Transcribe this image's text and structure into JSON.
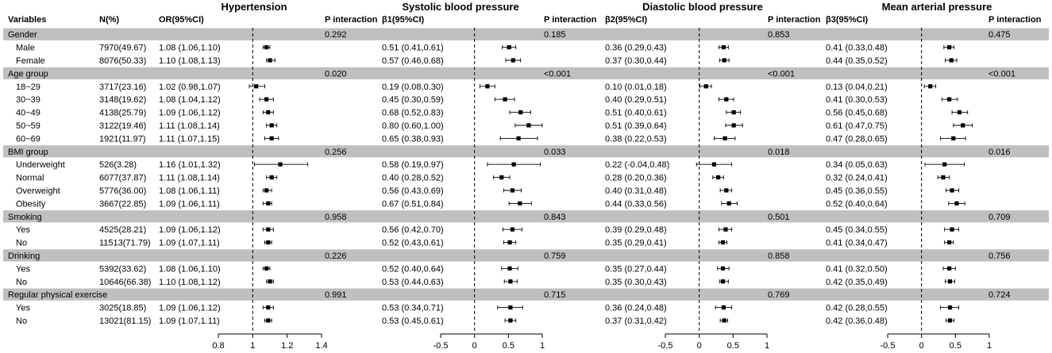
{
  "figure": {
    "column_headers": {
      "variables": "Variables",
      "n": "N(%)",
      "or": "OR(95%CI)",
      "p_interaction": "P interaction",
      "b1": "β1(95%CI)",
      "b2": "β2(95%CI)",
      "b3": "β3(95%CI)"
    },
    "panel_titles": [
      "Hypertension",
      "Systolic blood pressure",
      "Diastolic blood pressure",
      "Mean arterial pressure"
    ]
  },
  "chart_data": {
    "type": "forest",
    "panels": [
      {
        "name": "Hypertension",
        "estimate_label": "OR(95%CI)",
        "reference": 1,
        "xlim": [
          0.8,
          1.4
        ],
        "ticks": [
          0.8,
          1,
          1.2,
          1.4
        ],
        "tick_labels": [
          "0.8",
          "1",
          "1.2",
          "1.4"
        ]
      },
      {
        "name": "Systolic blood pressure",
        "estimate_label": "β1(95%CI)",
        "reference": 0,
        "xlim": [
          -0.5,
          1
        ],
        "ticks": [
          -0.5,
          0,
          0.5,
          1
        ],
        "tick_labels": [
          "-0.5",
          "0",
          "0.5",
          "1"
        ]
      },
      {
        "name": "Diastolic blood pressure",
        "estimate_label": "β2(95%CI)",
        "reference": 0,
        "xlim": [
          -0.5,
          1
        ],
        "ticks": [
          -0.5,
          0,
          0.5,
          1
        ],
        "tick_labels": [
          "-0.5",
          "0",
          "0.5",
          "1"
        ]
      },
      {
        "name": "Mean arterial pressure",
        "estimate_label": "β3(95%CI)",
        "reference": 0,
        "xlim": [
          -0.5,
          1
        ],
        "ticks": [
          -0.5,
          0,
          0.5,
          1
        ],
        "tick_labels": [
          "-0.5",
          "0",
          "0.5",
          "1"
        ]
      }
    ],
    "rows": [
      {
        "kind": "group",
        "label": "Gender",
        "p": [
          "0.292",
          "0.185",
          "0.853",
          "0.475"
        ]
      },
      {
        "kind": "item",
        "label": "Male",
        "n": "7970(49.67)",
        "ci": [
          "1.08 (1.06,1.10)",
          "0.51 (0.41,0.61)",
          "0.36 (0.29,0.43)",
          "0.41 (0.33,0.48)"
        ],
        "est": [
          [
            1.08,
            1.06,
            1.1
          ],
          [
            0.51,
            0.41,
            0.61
          ],
          [
            0.36,
            0.29,
            0.43
          ],
          [
            0.41,
            0.33,
            0.48
          ]
        ]
      },
      {
        "kind": "item",
        "label": "Female",
        "n": "8076(50.33)",
        "ci": [
          "1.10 (1.08,1.13)",
          "0.57 (0.46,0.68)",
          "0.37 (0.30,0.44)",
          "0.44 (0.35,0.52)"
        ],
        "est": [
          [
            1.1,
            1.08,
            1.13
          ],
          [
            0.57,
            0.46,
            0.68
          ],
          [
            0.37,
            0.3,
            0.44
          ],
          [
            0.44,
            0.35,
            0.52
          ]
        ]
      },
      {
        "kind": "group",
        "label": "Age group",
        "p": [
          "0.020",
          "<0.001",
          "<0.001",
          "<0.001"
        ]
      },
      {
        "kind": "item",
        "label": "18~29",
        "n": "3717(23.16)",
        "ci": [
          "1.02 (0.98,1.07)",
          "0.19 (0.08,0.30)",
          "0.10 (0.01,0.18)",
          "0.13 (0.04,0.21)"
        ],
        "est": [
          [
            1.02,
            0.98,
            1.07
          ],
          [
            0.19,
            0.08,
            0.3
          ],
          [
            0.1,
            0.01,
            0.18
          ],
          [
            0.13,
            0.04,
            0.21
          ]
        ]
      },
      {
        "kind": "item",
        "label": "30~39",
        "n": "3148(19.62)",
        "ci": [
          "1.08 (1.04,1.12)",
          "0.45 (0.30,0.59)",
          "0.40 (0.29,0.51)",
          "0.41 (0.30,0.53)"
        ],
        "est": [
          [
            1.08,
            1.04,
            1.12
          ],
          [
            0.45,
            0.3,
            0.59
          ],
          [
            0.4,
            0.29,
            0.51
          ],
          [
            0.41,
            0.3,
            0.53
          ]
        ]
      },
      {
        "kind": "item",
        "label": "40~49",
        "n": "4138(25.79)",
        "ci": [
          "1.09 (1.06,1.12)",
          "0.68 (0.52,0.83)",
          "0.51 (0.40,0.61)",
          "0.56 (0.45,0.68)"
        ],
        "est": [
          [
            1.09,
            1.06,
            1.12
          ],
          [
            0.68,
            0.52,
            0.83
          ],
          [
            0.51,
            0.4,
            0.61
          ],
          [
            0.56,
            0.45,
            0.68
          ]
        ]
      },
      {
        "kind": "item",
        "label": "50~59",
        "n": "3122(19.46)",
        "ci": [
          "1.11 (1.08,1.14)",
          "0.80 (0.60,1.00)",
          "0.51 (0.39,0.64)",
          "0.61 (0.47,0.75)"
        ],
        "est": [
          [
            1.11,
            1.08,
            1.14
          ],
          [
            0.8,
            0.6,
            1.0
          ],
          [
            0.51,
            0.39,
            0.64
          ],
          [
            0.61,
            0.47,
            0.75
          ]
        ]
      },
      {
        "kind": "item",
        "label": "60~69",
        "n": "1921(11.97)",
        "ci": [
          "1.11 (1.07,1.15)",
          "0.65 (0.38,0.93)",
          "0.38 (0.22,0.53)",
          "0.47 (0.28,0.65)"
        ],
        "est": [
          [
            1.11,
            1.07,
            1.15
          ],
          [
            0.65,
            0.38,
            0.93
          ],
          [
            0.38,
            0.22,
            0.53
          ],
          [
            0.47,
            0.28,
            0.65
          ]
        ]
      },
      {
        "kind": "group",
        "label": "BMI group",
        "p": [
          "0.256",
          "0.033",
          "0.018",
          "0.016"
        ]
      },
      {
        "kind": "item",
        "label": "Underweight",
        "n": "526(3.28)",
        "ci": [
          "1.16 (1.01,1.32)",
          "0.58 (0.19,0.97)",
          "0.22 (-0.04,0.48)",
          "0.34 (0.05,0.63)"
        ],
        "est": [
          [
            1.16,
            1.01,
            1.32
          ],
          [
            0.58,
            0.19,
            0.97
          ],
          [
            0.22,
            -0.04,
            0.48
          ],
          [
            0.34,
            0.05,
            0.63
          ]
        ]
      },
      {
        "kind": "item",
        "label": "Normal",
        "n": "6077(37.87)",
        "ci": [
          "1.11 (1.08,1.14)",
          "0.40 (0.28,0.52)",
          "0.28 (0.20,0.36)",
          "0.32 (0.24,0.41)"
        ],
        "est": [
          [
            1.11,
            1.08,
            1.14
          ],
          [
            0.4,
            0.28,
            0.52
          ],
          [
            0.28,
            0.2,
            0.36
          ],
          [
            0.32,
            0.24,
            0.41
          ]
        ]
      },
      {
        "kind": "item",
        "label": "Overweight",
        "n": "5776(36.00)",
        "ci": [
          "1.08 (1.06,1.11)",
          "0.56 (0.43,0.69)",
          "0.40 (0.31,0.48)",
          "0.45 (0.36,0.55)"
        ],
        "est": [
          [
            1.08,
            1.06,
            1.11
          ],
          [
            0.56,
            0.43,
            0.69
          ],
          [
            0.4,
            0.31,
            0.48
          ],
          [
            0.45,
            0.36,
            0.55
          ]
        ]
      },
      {
        "kind": "item",
        "label": "Obesity",
        "n": "3667(22.85)",
        "ci": [
          "1.09 (1.06,1.11)",
          "0.67 (0.51,0.84)",
          "0.44 (0.33,0.56)",
          "0.52 (0.40,0.64)"
        ],
        "est": [
          [
            1.09,
            1.06,
            1.11
          ],
          [
            0.67,
            0.51,
            0.84
          ],
          [
            0.44,
            0.33,
            0.56
          ],
          [
            0.52,
            0.4,
            0.64
          ]
        ]
      },
      {
        "kind": "group",
        "label": "Smoking",
        "p": [
          "0.958",
          "0.843",
          "0.501",
          "0.709"
        ]
      },
      {
        "kind": "item",
        "label": "Yes",
        "n": "4525(28.21)",
        "ci": [
          "1.09 (1.06,1.12)",
          "0.56 (0.42,0.70)",
          "0.39 (0.29,0.48)",
          "0.45 (0.34,0.55)"
        ],
        "est": [
          [
            1.09,
            1.06,
            1.12
          ],
          [
            0.56,
            0.42,
            0.7
          ],
          [
            0.39,
            0.29,
            0.48
          ],
          [
            0.45,
            0.34,
            0.55
          ]
        ]
      },
      {
        "kind": "item",
        "label": "No",
        "n": "11513(71.79)",
        "ci": [
          "1.09 (1.07,1.11)",
          "0.52 (0.43,0.61)",
          "0.35 (0.29,0.41)",
          "0.41 (0.34,0.47)"
        ],
        "est": [
          [
            1.09,
            1.07,
            1.11
          ],
          [
            0.52,
            0.43,
            0.61
          ],
          [
            0.35,
            0.29,
            0.41
          ],
          [
            0.41,
            0.34,
            0.47
          ]
        ]
      },
      {
        "kind": "group",
        "label": "Drinking",
        "p": [
          "0.226",
          "0.759",
          "0.858",
          "0.756"
        ]
      },
      {
        "kind": "item",
        "label": "Yes",
        "n": "5392(33.62)",
        "ci": [
          "1.08 (1.06,1.10)",
          "0.52 (0.40,0.64)",
          "0.35 (0.27,0.44)",
          "0.41 (0.32,0.50)"
        ],
        "est": [
          [
            1.08,
            1.06,
            1.1
          ],
          [
            0.52,
            0.4,
            0.64
          ],
          [
            0.35,
            0.27,
            0.44
          ],
          [
            0.41,
            0.32,
            0.5
          ]
        ]
      },
      {
        "kind": "item",
        "label": "No",
        "n": "10646(66.38)",
        "ci": [
          "1.10 (1.08,1.12)",
          "0.53 (0.44,0.63)",
          "0.35 (0.30,0.43)",
          "0.42 (0.35,0.49)"
        ],
        "est": [
          [
            1.1,
            1.08,
            1.12
          ],
          [
            0.53,
            0.44,
            0.63
          ],
          [
            0.35,
            0.3,
            0.43
          ],
          [
            0.42,
            0.35,
            0.49
          ]
        ]
      },
      {
        "kind": "group",
        "label": "Regular physical exercise",
        "p": [
          "0.991",
          "0.715",
          "0.769",
          "0.724"
        ]
      },
      {
        "kind": "item",
        "label": "Yes",
        "n": "3025(18.85)",
        "ci": [
          "1.09 (1.06,1.12)",
          "0.53 (0.34,0.71)",
          "0.36 (0.24,0.48)",
          "0.42 (0.28,0.55)"
        ],
        "est": [
          [
            1.09,
            1.06,
            1.12
          ],
          [
            0.53,
            0.34,
            0.71
          ],
          [
            0.36,
            0.24,
            0.48
          ],
          [
            0.42,
            0.28,
            0.55
          ]
        ]
      },
      {
        "kind": "item",
        "label": "No",
        "n": "13021(81.15)",
        "ci": [
          "1.09 (1.07,1.11)",
          "0.53 (0.45,0.61)",
          "0.37 (0.31,0.42)",
          "0.42 (0.36,0.48)"
        ],
        "est": [
          [
            1.09,
            1.07,
            1.11
          ],
          [
            0.53,
            0.45,
            0.61
          ],
          [
            0.37,
            0.31,
            0.42
          ],
          [
            0.42,
            0.36,
            0.48
          ]
        ]
      }
    ]
  }
}
